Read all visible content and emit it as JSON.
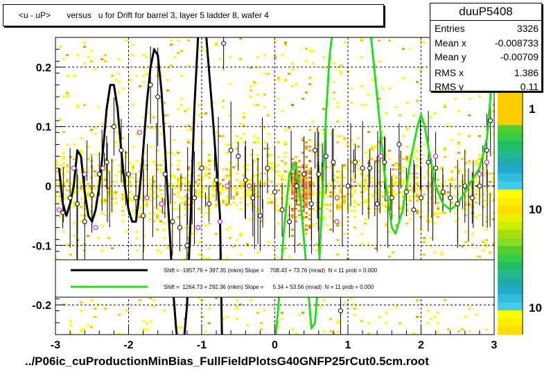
{
  "title": "<u - uP>       versus   u for Drift for barrel 3, layer 5 ladder 8, wafer 4",
  "footer_text": "../P06ic_cuProductionMinBias_FullFieldPlotsG40GNFP25rCut0.5cm.root",
  "stats": {
    "name": "duuP5408",
    "rows": [
      {
        "label": "Entries",
        "value": "3326"
      },
      {
        "label": "Mean x",
        "value": "-0.008733"
      },
      {
        "label": "Mean y",
        "value": "-0.00709"
      },
      {
        "label": "RMS x",
        "value": "1.386"
      },
      {
        "label": "RMS y",
        "value": "0.11"
      }
    ]
  },
  "colors": {
    "black_fit": "#000000",
    "green_fit": "#22dd22",
    "marker_profile": "#000000",
    "marker_alt": "#cc00cc",
    "palette": [
      "#ffff00",
      "#ffcc00",
      "#ff9900",
      "#ff6600",
      "#44cc44",
      "#22bb77",
      "#22aaaa",
      "#22aadd",
      "#33ccee"
    ]
  },
  "chart_data": {
    "type": "scatter",
    "title": "<u - uP>       versus   u for Drift for barrel 3, layer 5 ladder 8, wafer 4",
    "xlim": [
      -3,
      3
    ],
    "ylim": [
      -0.25,
      0.25
    ],
    "x_ticks": [
      -3,
      -2,
      -1,
      0,
      1,
      2,
      3
    ],
    "x_tick_labels": [
      "-3",
      "-2",
      "-1",
      "0",
      "1",
      "2",
      "3"
    ],
    "y_ticks": [
      -0.2,
      -0.1,
      0,
      0.1,
      0.2
    ],
    "y_tick_labels": [
      "-0.2",
      "-0.1",
      "0",
      "0.1",
      "0.2"
    ],
    "grid": true,
    "colorbar_labels": [
      "1",
      "10",
      "10"
    ],
    "legend": [
      {
        "name": "Shift = -1957.76 + 397.35 (mkm) Slope =    708.43 + 73.76 (mrad)  N = 11 prob = 0.000",
        "color": "#000000"
      },
      {
        "name": "Shift =  1264.73 + 292.36 (mkm) Slope =      5.34 + 53.56 (mrad)  N = 11 prob = 0.000",
        "color": "#22dd22"
      }
    ],
    "profile_points": [
      {
        "x": -2.9,
        "y": -0.045
      },
      {
        "x": -2.8,
        "y": -0.02
      },
      {
        "x": -2.7,
        "y": -0.03
      },
      {
        "x": -2.6,
        "y": -0.06
      },
      {
        "x": -2.5,
        "y": -0.015
      },
      {
        "x": -2.4,
        "y": 0.02
      },
      {
        "x": -2.3,
        "y": 0.04
      },
      {
        "x": -2.2,
        "y": 0.1
      },
      {
        "x": -2.1,
        "y": 0.06
      },
      {
        "x": -2.0,
        "y": 0.02
      },
      {
        "x": -1.9,
        "y": -0.02
      },
      {
        "x": -1.8,
        "y": -0.05
      },
      {
        "x": -1.7,
        "y": 0.17
      },
      {
        "x": -1.6,
        "y": 0.15
      },
      {
        "x": -1.5,
        "y": 0.02
      },
      {
        "x": -1.4,
        "y": -0.06
      },
      {
        "x": -1.3,
        "y": -0.07
      },
      {
        "x": -1.2,
        "y": -0.1
      },
      {
        "x": -1.1,
        "y": -0.02
      },
      {
        "x": -1.0,
        "y": 0.03
      },
      {
        "x": -0.9,
        "y": -0.03
      },
      {
        "x": -0.8,
        "y": 0.01
      },
      {
        "x": -0.7,
        "y": 0.24
      },
      {
        "x": -0.6,
        "y": 0.06
      },
      {
        "x": -0.5,
        "y": 0.05
      },
      {
        "x": -0.4,
        "y": 0.01
      },
      {
        "x": -0.3,
        "y": -0.02
      },
      {
        "x": -0.2,
        "y": -0.05
      },
      {
        "x": -0.1,
        "y": 0.03
      },
      {
        "x": 0.0,
        "y": -0.01
      },
      {
        "x": 0.1,
        "y": -0.04
      },
      {
        "x": 0.2,
        "y": -0.06
      },
      {
        "x": 0.3,
        "y": 0.0
      },
      {
        "x": 0.4,
        "y": 0.02
      },
      {
        "x": 0.5,
        "y": -0.03
      },
      {
        "x": 0.55,
        "y": 0.06
      },
      {
        "x": 0.6,
        "y": 0.02
      },
      {
        "x": 0.7,
        "y": 0.05
      },
      {
        "x": 0.8,
        "y": 0.04
      },
      {
        "x": 0.9,
        "y": -0.21
      },
      {
        "x": 1.0,
        "y": 0.0
      },
      {
        "x": 1.1,
        "y": 0.04
      },
      {
        "x": 1.2,
        "y": 0.03
      },
      {
        "x": 1.3,
        "y": 0.03
      },
      {
        "x": 1.4,
        "y": -0.03
      },
      {
        "x": 1.5,
        "y": 0.04
      },
      {
        "x": 1.6,
        "y": -0.02
      },
      {
        "x": 1.7,
        "y": 0.07
      },
      {
        "x": 1.8,
        "y": -0.01
      },
      {
        "x": 1.9,
        "y": -0.04
      },
      {
        "x": 2.0,
        "y": -0.02
      },
      {
        "x": 2.1,
        "y": 0.04
      },
      {
        "x": 2.2,
        "y": 0.03
      },
      {
        "x": 2.3,
        "y": -0.01
      },
      {
        "x": 2.4,
        "y": -0.02
      },
      {
        "x": 2.5,
        "y": -0.03
      },
      {
        "x": 2.6,
        "y": 0.0
      },
      {
        "x": 2.7,
        "y": -0.02
      },
      {
        "x": 2.8,
        "y": 0.0
      },
      {
        "x": 2.9,
        "y": 0.06
      },
      {
        "x": 2.95,
        "y": 0.11
      }
    ],
    "alt_points": [
      {
        "x": -2.95,
        "y": -0.04
      },
      {
        "x": -2.75,
        "y": 0.03
      },
      {
        "x": -2.6,
        "y": 0.02
      },
      {
        "x": -2.45,
        "y": -0.07
      },
      {
        "x": -2.35,
        "y": 0.03
      },
      {
        "x": -1.85,
        "y": 0.09
      },
      {
        "x": -1.75,
        "y": -0.02
      },
      {
        "x": -1.55,
        "y": -0.03
      },
      {
        "x": -1.05,
        "y": -0.07
      },
      {
        "x": -0.75,
        "y": -0.06
      },
      {
        "x": -0.65,
        "y": 0.0
      },
      {
        "x": -0.35,
        "y": 0.0
      },
      {
        "x": 0.85,
        "y": -0.02
      },
      {
        "x": 1.45,
        "y": 0.05
      },
      {
        "x": 2.2,
        "y": 0.05
      },
      {
        "x": 0.85,
        "y": -0.06
      },
      {
        "x": 2.8,
        "y": 0.02
      },
      {
        "x": 2.9,
        "y": 0.04
      }
    ],
    "fit_curves": [
      {
        "color": "#000000",
        "points": [
          [
            -2.95,
            0.03
          ],
          [
            -2.9,
            -0.03
          ],
          [
            -2.85,
            -0.05
          ],
          [
            -2.8,
            -0.03
          ],
          [
            -2.75,
            0.0
          ],
          [
            -2.7,
            0.06
          ],
          [
            -2.65,
            0.05
          ],
          [
            -2.6,
            -0.01
          ],
          [
            -2.55,
            -0.05
          ],
          [
            -2.5,
            -0.06
          ],
          [
            -2.45,
            -0.04
          ],
          [
            -2.4,
            0.0
          ],
          [
            -2.35,
            0.06
          ],
          [
            -2.3,
            0.13
          ],
          [
            -2.25,
            0.17
          ],
          [
            -2.2,
            0.17
          ],
          [
            -2.15,
            0.13
          ],
          [
            -2.1,
            0.06
          ],
          [
            -2.05,
            0.0
          ],
          [
            -2.0,
            -0.04
          ],
          [
            -1.95,
            -0.06
          ],
          [
            -1.9,
            -0.06
          ],
          [
            -1.85,
            -0.01
          ],
          [
            -1.8,
            0.06
          ],
          [
            -1.75,
            0.14
          ],
          [
            -1.7,
            0.2
          ],
          [
            -1.65,
            0.23
          ],
          [
            -1.6,
            0.22
          ],
          [
            -1.55,
            0.16
          ],
          [
            -1.5,
            0.06
          ],
          [
            -1.45,
            -0.05
          ],
          [
            -1.4,
            -0.16
          ],
          [
            -1.35,
            -0.24
          ],
          [
            -1.32,
            -0.27
          ],
          [
            -1.25,
            -0.27
          ],
          [
            -1.2,
            -0.2
          ],
          [
            -1.15,
            -0.05
          ],
          [
            -1.1,
            0.13
          ],
          [
            -1.05,
            0.25
          ],
          [
            -1.0,
            0.27
          ],
          [
            -0.95,
            0.27
          ],
          [
            -0.85,
            0.12
          ],
          [
            -0.75,
            -0.05
          ],
          [
            -0.72,
            -0.27
          ]
        ]
      },
      {
        "color": "#22dd22",
        "points": [
          [
            0.0,
            -0.27
          ],
          [
            0.05,
            -0.2
          ],
          [
            0.12,
            -0.08
          ],
          [
            0.2,
            0.02
          ],
          [
            0.28,
            0.04
          ],
          [
            0.35,
            -0.02
          ],
          [
            0.42,
            -0.12
          ],
          [
            0.5,
            -0.24
          ],
          [
            0.55,
            -0.23
          ],
          [
            0.6,
            -0.15
          ],
          [
            0.65,
            -0.02
          ],
          [
            0.7,
            0.12
          ],
          [
            0.75,
            0.22
          ],
          [
            0.8,
            0.27
          ],
          [
            1.3,
            0.27
          ],
          [
            1.4,
            0.15
          ],
          [
            1.5,
            0.02
          ],
          [
            1.6,
            -0.07
          ],
          [
            1.65,
            -0.08
          ],
          [
            1.75,
            -0.04
          ],
          [
            1.85,
            0.04
          ],
          [
            1.95,
            0.1
          ],
          [
            2.0,
            0.12
          ],
          [
            2.05,
            0.1
          ],
          [
            2.12,
            0.05
          ],
          [
            2.2,
            0.0
          ],
          [
            2.3,
            -0.03
          ],
          [
            2.4,
            -0.04
          ],
          [
            2.5,
            -0.03
          ],
          [
            2.6,
            -0.01
          ],
          [
            2.7,
            0.01
          ],
          [
            2.8,
            0.03
          ],
          [
            2.9,
            0.08
          ],
          [
            2.95,
            0.15
          ],
          [
            3.0,
            0.26
          ]
        ]
      }
    ]
  }
}
